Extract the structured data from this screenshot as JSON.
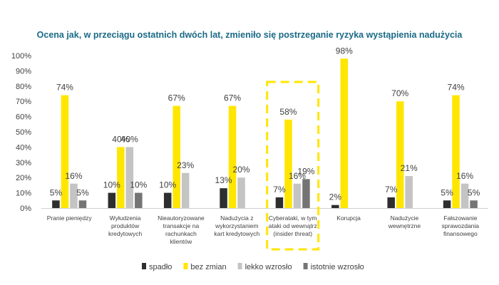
{
  "chart_data": {
    "type": "bar",
    "title": "Ocena jak, w przeciągu ostatnich dwóch lat, zmieniło się postrzeganie ryzyka wystąpienia nadużycia",
    "ylim": [
      0,
      100
    ],
    "y_ticks": [
      "0%",
      "10%",
      "20%",
      "30%",
      "40%",
      "50%",
      "60%",
      "70%",
      "80%",
      "90%",
      "100%"
    ],
    "categories": [
      [
        "Pranie pieniędzy"
      ],
      [
        "Wyłudzenia",
        "produktów",
        "kredytowych"
      ],
      [
        "Nieautoryzowane",
        "transakcje na",
        "rachunkach",
        "klientów"
      ],
      [
        "Nadużycia z",
        "wykorzystaniem",
        "kart kredytowych"
      ],
      [
        "Cyberataki, w tym",
        "ataki od wewnątrz",
        "(insider threat)"
      ],
      [
        "Korupcja"
      ],
      [
        "Nadużycie",
        "wewnętrzne"
      ],
      [
        "Fałszowanie",
        "sprawozdania",
        "finansowego"
      ]
    ],
    "series": [
      {
        "name": "spadło",
        "color": "#2e2e2e",
        "values": [
          5,
          10,
          10,
          13,
          7,
          2,
          7,
          5
        ],
        "labels": [
          "5%",
          "10%",
          "10%",
          "13%",
          "7%",
          "2%",
          "7%",
          "5%"
        ]
      },
      {
        "name": "bez zmian",
        "color": "#ffe600",
        "values": [
          74,
          40,
          67,
          67,
          58,
          98,
          70,
          74
        ],
        "labels": [
          "74%",
          "40%",
          "67%",
          "67%",
          "58%",
          "98%",
          "70%",
          "74%"
        ]
      },
      {
        "name": "lekko wzrosło",
        "color": "#c4c4c4",
        "values": [
          16,
          40,
          23,
          20,
          16,
          null,
          21,
          16
        ],
        "labels": [
          "16%",
          "40%",
          "23%",
          "20%",
          "16%",
          "",
          "21%",
          "16%"
        ]
      },
      {
        "name": "istotnie wzrosło",
        "color": "#747474",
        "values": [
          5,
          10,
          null,
          null,
          19,
          null,
          null,
          5
        ],
        "labels": [
          "5%",
          "10%",
          "",
          "",
          "19%",
          "",
          "",
          "5%"
        ]
      }
    ],
    "highlight": {
      "category_index": 4,
      "color": "#ffe600",
      "style": "dashed"
    },
    "legend_position": "bottom",
    "grid": false
  }
}
